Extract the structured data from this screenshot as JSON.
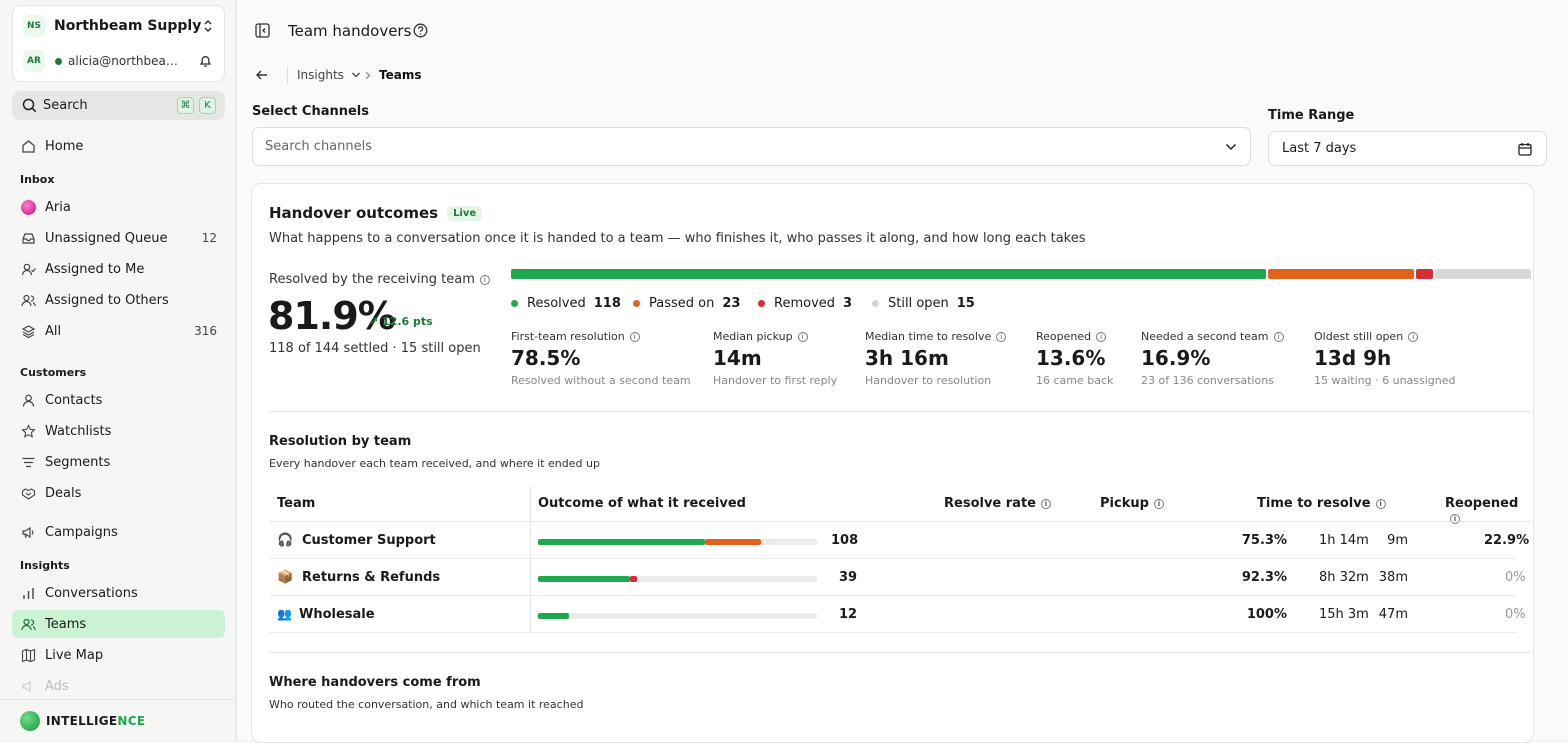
{
  "workspace": {
    "initials": "NS",
    "name": "Northbeam Supply",
    "user_initials": "AR",
    "email": "alicia@northbeams..."
  },
  "search": {
    "label": "Search",
    "k1": "⌘",
    "k2": "K"
  },
  "nav": {
    "home": "Home",
    "inbox_title": "Inbox",
    "aria": "Aria",
    "unassigned": "Unassigned Queue",
    "unassigned_count": "12",
    "assigned_me": "Assigned to Me",
    "assigned_others": "Assigned to Others",
    "all": "All",
    "all_count": "316",
    "customers_title": "Customers",
    "contacts": "Contacts",
    "watchlists": "Watchlists",
    "segments": "Segments",
    "deals": "Deals",
    "campaigns": "Campaigns",
    "insights_title": "Insights",
    "conversations": "Conversations",
    "teams": "Teams",
    "live_map": "Live Map",
    "ads": "Ads"
  },
  "brand": {
    "name_a": "INTELLIGE",
    "name_b": "NCE"
  },
  "header": {
    "title": "Team handovers",
    "crumb_parent": "Insights",
    "crumb_current": "Teams"
  },
  "filters": {
    "channels_label": "Select Channels",
    "channels_placeholder": "Search channels",
    "time_label": "Time Range",
    "time_value": "Last 7 days"
  },
  "outcomes": {
    "title": "Handover outcomes",
    "badge": "Live",
    "subtitle": "What happens to a conversation once it is handed to a team — who finishes it, who passes it along, and how long each takes",
    "resolved_label": "Resolved by the receiving team",
    "resolved_pct": "81.9%",
    "delta": "↗ 12.6 pts",
    "settled": "118 of 144 settled · 15 still open",
    "bar": {
      "resolved": 118,
      "passed": 23,
      "removed": 3,
      "open": 15
    },
    "legend": [
      {
        "label": "Resolved",
        "value": "118",
        "color": "#1fa84d"
      },
      {
        "label": "Passed on",
        "value": "23",
        "color": "#e2621d"
      },
      {
        "label": "Removed",
        "value": "3",
        "color": "#d42e36"
      },
      {
        "label": "Still open",
        "value": "15",
        "color": "#d4d4d2"
      }
    ],
    "metrics": [
      {
        "label": "First-team resolution",
        "value": "78.5%",
        "sub": "Resolved without a second team"
      },
      {
        "label": "Median pickup",
        "value": "14m",
        "sub": "Handover to first reply"
      },
      {
        "label": "Median time to resolve",
        "value": "3h 16m",
        "sub": "Handover to resolution"
      },
      {
        "label": "Reopened",
        "value": "13.6%",
        "sub": "16 came back"
      },
      {
        "label": "Needed a second team",
        "value": "16.9%",
        "sub": "23 of 136 conversations"
      },
      {
        "label": "Oldest still open",
        "value": "13d 9h",
        "sub": "15 waiting · 6 unassigned"
      }
    ]
  },
  "teams_table": {
    "title": "Resolution by team",
    "subtitle": "Every handover each team received, and where it ended up",
    "headers": {
      "team": "Team",
      "outcome": "Outcome of what it received",
      "resolve_rate": "Resolve rate",
      "pickup": "Pickup",
      "time_to_resolve": "Time to resolve",
      "reopened": "Reopened"
    },
    "rows": [
      {
        "team": "Customer Support",
        "icon": "🎧",
        "total": "108",
        "resolved": 0.6,
        "passed": 0.2,
        "removed": 0,
        "resolve_rate": "75.3%",
        "pickup": "9m",
        "time_to_resolve": "1h 14m",
        "reopened": "22.9%"
      },
      {
        "team": "Returns & Refunds",
        "icon": "📦",
        "total": "39",
        "resolved": 0.33,
        "passed": 0,
        "removed": 0.025,
        "resolve_rate": "92.3%",
        "pickup": "38m",
        "time_to_resolve": "8h 32m",
        "reopened": "0%"
      },
      {
        "team": "Wholesale",
        "icon": "👥",
        "total": "12",
        "resolved": 0.11,
        "passed": 0,
        "removed": 0,
        "resolve_rate": "100%",
        "pickup": "47m",
        "time_to_resolve": "15h 3m",
        "reopened": "0%"
      }
    ]
  },
  "sources": {
    "title": "Where handovers come from",
    "subtitle": "Who routed the conversation, and which team it reached"
  }
}
